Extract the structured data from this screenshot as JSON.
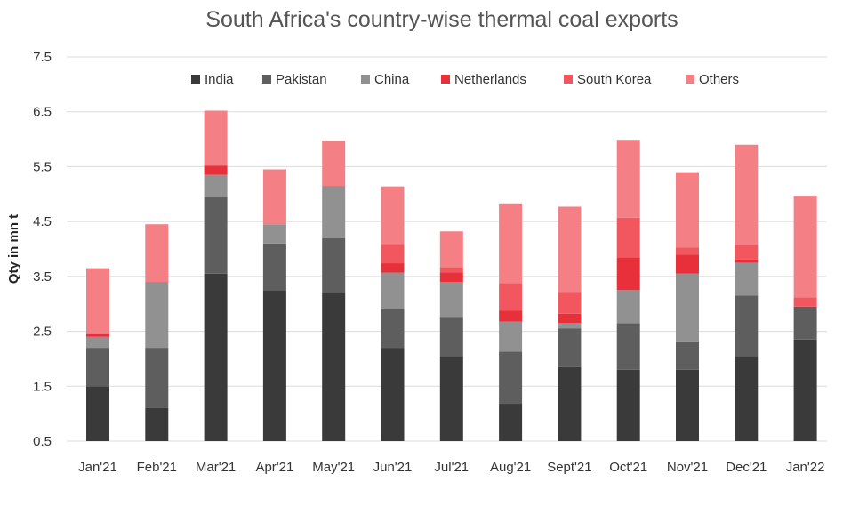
{
  "chart_data": {
    "type": "bar",
    "stacked": true,
    "title": "South Africa's country-wise thermal coal exports",
    "ylabel": "Qty in mn t",
    "xlabel": "",
    "ylim": [
      0.5,
      7.5
    ],
    "yticks": [
      "7.5",
      "6.5",
      "5.5",
      "4.5",
      "3.5",
      "2.5",
      "1.5",
      "0.5"
    ],
    "grid": true,
    "legend_position": "top",
    "categories": [
      "Jan'21",
      "Feb'21",
      "Mar'21",
      "Apr'21",
      "May'21",
      "Jun'21",
      "Jul'21",
      "Aug'21",
      "Sept'21",
      "Oct'21",
      "Nov'21",
      "Dec'21",
      "Jan'22"
    ],
    "series": [
      {
        "name": "India",
        "color": "#3a3a3a",
        "values": [
          1.0,
          0.6,
          3.05,
          2.75,
          2.7,
          1.7,
          1.55,
          0.68,
          1.35,
          1.3,
          1.3,
          1.55,
          1.85
        ]
      },
      {
        "name": "Pakistan",
        "color": "#5e5e5e",
        "values": [
          0.7,
          1.1,
          1.4,
          0.85,
          1.0,
          0.72,
          0.7,
          0.95,
          0.7,
          0.85,
          0.5,
          1.1,
          0.6
        ]
      },
      {
        "name": "China",
        "color": "#919191",
        "values": [
          0.2,
          1.2,
          0.4,
          0.35,
          0.95,
          0.65,
          0.65,
          0.55,
          0.1,
          0.6,
          1.25,
          0.6,
          0.0
        ]
      },
      {
        "name": "Netherlands",
        "color": "#e8303b",
        "values": [
          0.05,
          0.0,
          0.17,
          0.0,
          0.0,
          0.17,
          0.17,
          0.2,
          0.17,
          0.6,
          0.35,
          0.06,
          0.0
        ]
      },
      {
        "name": "South Korea",
        "color": "#f2575f",
        "values": [
          0.0,
          0.0,
          0.0,
          0.0,
          0.0,
          0.35,
          0.1,
          0.5,
          0.4,
          0.72,
          0.13,
          0.27,
          0.17
        ]
      },
      {
        "name": "Others",
        "color": "#f47f85",
        "values": [
          1.2,
          1.05,
          1.0,
          1.0,
          0.82,
          1.05,
          0.65,
          1.45,
          1.55,
          1.42,
          1.37,
          1.82,
          1.85
        ]
      }
    ]
  }
}
